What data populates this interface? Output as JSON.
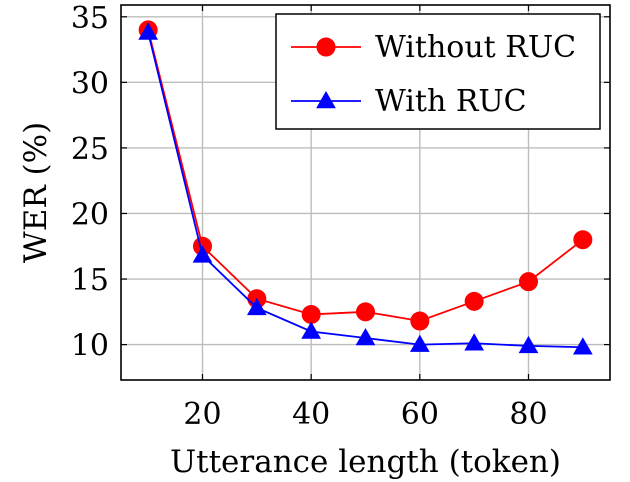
{
  "chart_data": {
    "type": "line",
    "title": "",
    "xlabel": "Utterance length (token)",
    "ylabel": "WER (%)",
    "xlim": [
      5,
      95
    ],
    "ylim": [
      7.3,
      35.9
    ],
    "x_ticks": [
      20,
      40,
      60,
      80
    ],
    "y_ticks": [
      10,
      15,
      20,
      25,
      30,
      35
    ],
    "grid": true,
    "legend_position": "top-right",
    "x": [
      10,
      20,
      30,
      40,
      50,
      60,
      70,
      80,
      90
    ],
    "series": [
      {
        "name": "Without RUC",
        "color": "#ff0000",
        "marker": "circle",
        "values": [
          34.0,
          17.5,
          13.5,
          12.3,
          12.5,
          11.8,
          13.3,
          14.8,
          18.0
        ]
      },
      {
        "name": "With RUC",
        "color": "#0000ff",
        "marker": "triangle",
        "values": [
          33.8,
          16.8,
          12.8,
          11.0,
          10.5,
          10.0,
          10.1,
          9.9,
          9.8
        ]
      }
    ]
  }
}
